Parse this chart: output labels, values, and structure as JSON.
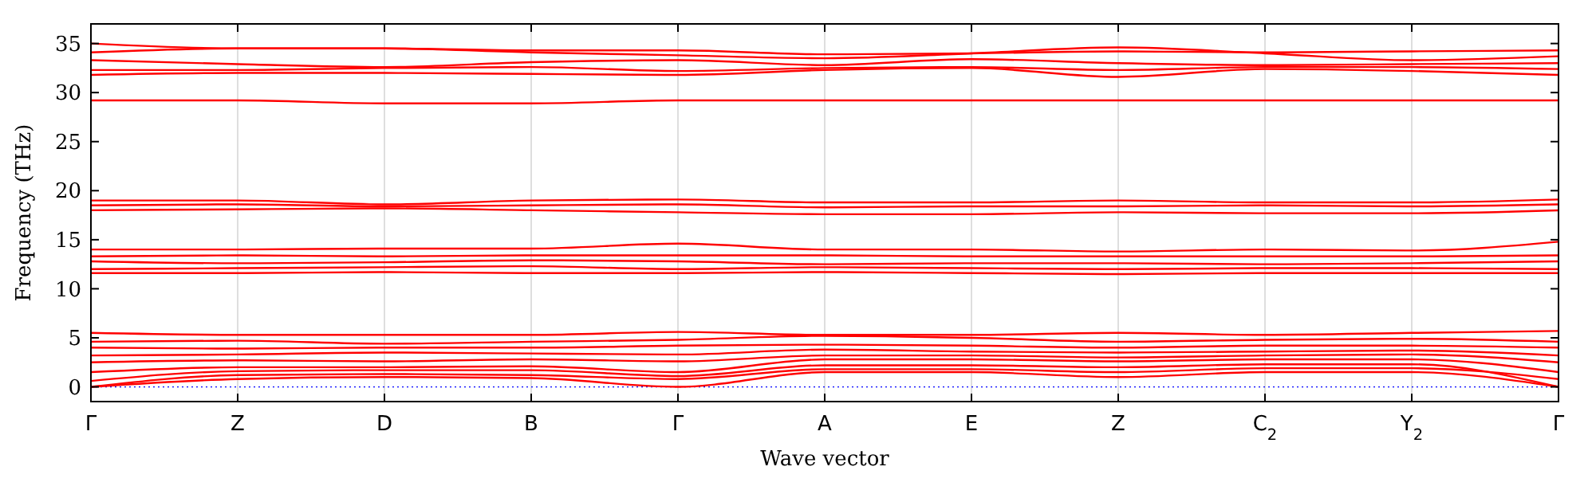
{
  "chart_data": {
    "type": "line",
    "xlabel": "Wave vector",
    "ylabel": "Frequency (THz)",
    "categories": [
      "Γ",
      "Z",
      "D",
      "B",
      "Γ",
      "A",
      "E",
      "Z",
      "C$_{2}$",
      "Y$_{2}$",
      "Γ"
    ],
    "ylim": [
      -1.5,
      37
    ],
    "yticks": [
      0,
      5,
      10,
      15,
      20,
      25,
      30,
      35
    ],
    "grid": "x",
    "marker": "none",
    "line_style": "solid",
    "ref_lines": [
      {
        "axis": "y",
        "value": 0,
        "color": "#0000ff",
        "line_style": "dotted"
      }
    ],
    "series": [
      {
        "color": "#ff0000",
        "values": [
          0,
          0.8,
          1,
          0.9,
          0,
          1.5,
          1.5,
          1,
          1.5,
          1.5,
          0
        ]
      },
      {
        "color": "#ff0000",
        "values": [
          0,
          1.2,
          1.3,
          1.2,
          0.8,
          1.8,
          1.8,
          1.5,
          1.9,
          1.9,
          0.8
        ]
      },
      {
        "color": "#ff0000",
        "values": [
          0.6,
          1.6,
          1.7,
          1.7,
          1.1,
          2.2,
          2.2,
          2,
          2.3,
          2.3,
          0
        ]
      },
      {
        "color": "#ff0000",
        "values": [
          1.5,
          2,
          2,
          2.1,
          1.5,
          2.8,
          2.8,
          2.6,
          2.8,
          2.8,
          1.5
        ]
      },
      {
        "color": "#ff0000",
        "values": [
          2.5,
          2.7,
          2.6,
          2.8,
          2.6,
          3.2,
          3.2,
          3,
          3.2,
          3.3,
          2.5
        ]
      },
      {
        "color": "#ff0000",
        "values": [
          3.2,
          3.3,
          3.5,
          3.4,
          3.3,
          3.8,
          3.6,
          3.5,
          3.6,
          3.7,
          3.2
        ]
      },
      {
        "color": "#ff0000",
        "values": [
          4,
          3.9,
          4,
          4,
          4.2,
          4.3,
          4.2,
          4,
          4.2,
          4.2,
          4
        ]
      },
      {
        "color": "#ff0000",
        "values": [
          4.6,
          4.7,
          4.4,
          4.6,
          4.8,
          5.2,
          5,
          4.6,
          4.8,
          4.9,
          4.6
        ]
      },
      {
        "color": "#ff0000",
        "values": [
          5.5,
          5.3,
          5.3,
          5.3,
          5.6,
          5.3,
          5.3,
          5.5,
          5.3,
          5.5,
          5.7
        ]
      },
      {
        "color": "#ff0000",
        "values": [
          11.6,
          11.6,
          11.7,
          11.6,
          11.6,
          11.7,
          11.6,
          11.5,
          11.6,
          11.6,
          11.6
        ]
      },
      {
        "color": "#ff0000",
        "values": [
          12,
          12.1,
          12.2,
          12.3,
          12,
          12.2,
          12.1,
          12,
          12.1,
          12.1,
          12
        ]
      },
      {
        "color": "#ff0000",
        "values": [
          12.8,
          12.6,
          12.7,
          12.9,
          12.8,
          12.5,
          12.6,
          12.6,
          12.5,
          12.6,
          12.8
        ]
      },
      {
        "color": "#ff0000",
        "values": [
          13.3,
          13.4,
          13.3,
          13.4,
          13.4,
          13.4,
          13.3,
          13.3,
          13.3,
          13.3,
          13.4
        ]
      },
      {
        "color": "#ff0000",
        "values": [
          14,
          14,
          14.1,
          14.1,
          14.6,
          14,
          14,
          13.8,
          14,
          13.9,
          14.8
        ]
      },
      {
        "color": "#ff0000",
        "values": [
          18,
          18.1,
          18.2,
          18,
          17.8,
          17.6,
          17.6,
          17.8,
          17.7,
          17.7,
          18
        ]
      },
      {
        "color": "#ff0000",
        "values": [
          18.5,
          18.6,
          18.4,
          18.5,
          18.6,
          18.3,
          18.4,
          18.4,
          18.5,
          18.4,
          18.6
        ]
      },
      {
        "color": "#ff0000",
        "values": [
          19,
          19,
          18.6,
          19,
          19.1,
          18.8,
          18.8,
          19,
          18.8,
          18.8,
          19.1
        ]
      },
      {
        "color": "#ff0000",
        "values": [
          29.2,
          29.2,
          28.9,
          28.9,
          29.2,
          29.2,
          29.2,
          29.2,
          29.2,
          29.2,
          29.2
        ]
      },
      {
        "color": "#ff0000",
        "values": [
          31.8,
          32,
          32,
          31.9,
          31.8,
          32.3,
          32.5,
          31.6,
          32.4,
          32.2,
          31.8
        ]
      },
      {
        "color": "#ff0000",
        "values": [
          32.3,
          32.3,
          32.5,
          32.6,
          32.2,
          32.5,
          32.6,
          32.3,
          32.6,
          32.6,
          32.4
        ]
      },
      {
        "color": "#ff0000",
        "values": [
          33.3,
          32.9,
          32.6,
          33.1,
          33.3,
          32.8,
          33.4,
          33,
          32.8,
          32.9,
          33
        ]
      },
      {
        "color": "#ff0000",
        "values": [
          34.1,
          34.5,
          34.5,
          34.1,
          33.8,
          33.5,
          34,
          34.6,
          34,
          33.3,
          33.7
        ]
      },
      {
        "color": "#ff0000",
        "values": [
          35,
          34.5,
          34.5,
          34.3,
          34.3,
          33.9,
          34,
          34.2,
          34.1,
          34.2,
          34.3
        ]
      }
    ]
  }
}
